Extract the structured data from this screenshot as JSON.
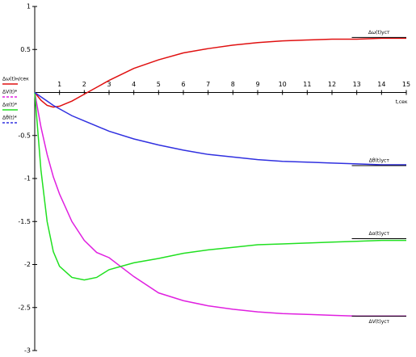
{
  "chart_data": {
    "type": "line",
    "x_label": "t,сек",
    "x": [
      0,
      0.25,
      0.5,
      0.75,
      1,
      1.5,
      2,
      2.5,
      3,
      4,
      5,
      6,
      7,
      8,
      9,
      10,
      11,
      12,
      13,
      14,
      15
    ],
    "series": [
      {
        "name": "Δω(t)н/сек",
        "color": "#e01010",
        "values": [
          0,
          -0.09,
          -0.15,
          -0.17,
          -0.16,
          -0.1,
          -0.02,
          0.06,
          0.14,
          0.28,
          0.38,
          0.46,
          0.51,
          0.55,
          0.58,
          0.6,
          0.61,
          0.62,
          0.62,
          0.63,
          0.63
        ]
      },
      {
        "name": "ΔV(t)*",
        "color": "#e020e0",
        "values": [
          0,
          -0.4,
          -0.72,
          -0.98,
          -1.18,
          -1.5,
          -1.72,
          -1.86,
          -1.92,
          -2.14,
          -2.33,
          -2.42,
          -2.48,
          -2.52,
          -2.55,
          -2.57,
          -2.58,
          -2.59,
          -2.6,
          -2.6,
          -2.6
        ]
      },
      {
        "name": "Δα(t)*",
        "color": "#20e020",
        "values": [
          0,
          -0.9,
          -1.5,
          -1.85,
          -2.02,
          -2.15,
          -2.18,
          -2.15,
          -2.06,
          -1.98,
          -1.93,
          -1.87,
          -1.83,
          -1.8,
          -1.77,
          -1.76,
          -1.75,
          -1.74,
          -1.73,
          -1.72,
          -1.72
        ]
      },
      {
        "name": "Δθ(t)*",
        "color": "#3030e0",
        "values": [
          0,
          -0.05,
          -0.1,
          -0.15,
          -0.19,
          -0.27,
          -0.33,
          -0.39,
          -0.45,
          -0.54,
          -0.61,
          -0.67,
          -0.72,
          -0.75,
          -0.78,
          -0.8,
          -0.81,
          -0.82,
          -0.83,
          -0.84,
          -0.84
        ]
      }
    ],
    "annotations": [
      {
        "text": "Δω(t)уст",
        "y": 0.64
      },
      {
        "text": "Δθ(t)уст",
        "y": -0.85
      },
      {
        "text": "Δα(t)уст",
        "y": -1.7
      },
      {
        "text": "ΔV(t)уст",
        "y": -2.6
      }
    ],
    "xlim": [
      0,
      15
    ],
    "ylim": [
      -3,
      1
    ],
    "xticks": [
      1,
      2,
      3,
      4,
      5,
      6,
      7,
      8,
      9,
      10,
      11,
      12,
      13,
      14,
      15
    ],
    "yticks": [
      1,
      0.5,
      -0.5,
      -1,
      -1.5,
      -2,
      -2.5,
      -3
    ]
  }
}
